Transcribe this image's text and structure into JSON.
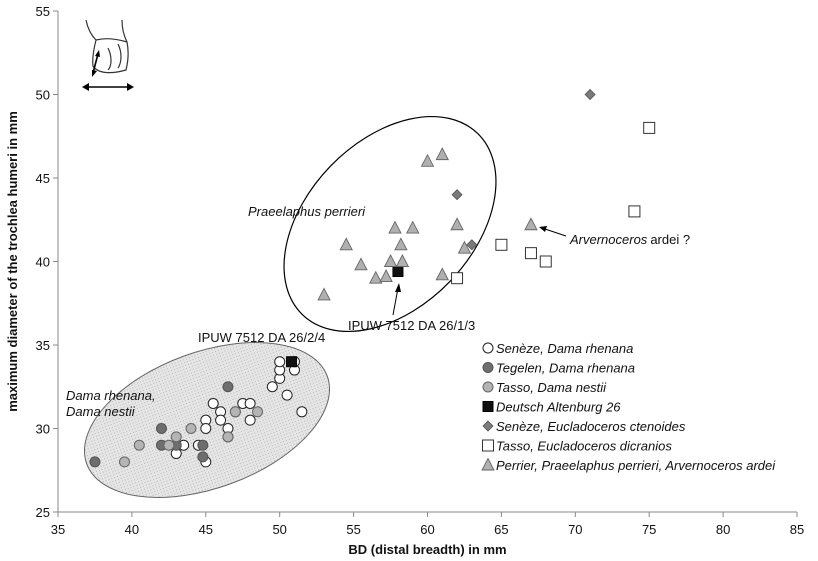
{
  "chart_data": {
    "type": "scatter",
    "xlabel": "BD (distal breadth) in mm",
    "ylabel": "maximum diameter of the trochlea humeri in mm",
    "xlim": [
      35,
      85
    ],
    "ylim": [
      25,
      55
    ],
    "x_ticks": [
      "35",
      "40",
      "45",
      "50",
      "55",
      "60",
      "65",
      "70",
      "75",
      "80",
      "85"
    ],
    "y_ticks": [
      "25",
      "30",
      "35",
      "40",
      "45",
      "50",
      "55"
    ],
    "grid": false,
    "legend_position": "bottom-right",
    "series": [
      {
        "name": "Senèze, Dama rhenana",
        "marker": "open-circle",
        "color": "#ffffff",
        "points": [
          [
            43,
            28.5
          ],
          [
            43.5,
            29
          ],
          [
            44.5,
            29
          ],
          [
            45,
            28
          ],
          [
            45,
            30.5
          ],
          [
            45,
            30
          ],
          [
            45.5,
            31.5
          ],
          [
            46,
            31
          ],
          [
            46,
            30.5
          ],
          [
            46.5,
            30
          ],
          [
            46.5,
            29.5
          ],
          [
            47.5,
            31.5
          ],
          [
            48,
            31.5
          ],
          [
            48,
            30.5
          ],
          [
            49.5,
            32.5
          ],
          [
            50,
            33
          ],
          [
            50,
            33.5
          ],
          [
            50,
            34
          ],
          [
            50.5,
            32
          ],
          [
            51,
            33.5
          ],
          [
            51,
            34
          ],
          [
            51.5,
            31
          ]
        ]
      },
      {
        "name": "Tegelen, Dama rhenana",
        "marker": "dark-circle",
        "color": "#6e6e6e",
        "points": [
          [
            37.5,
            28
          ],
          [
            42,
            30
          ],
          [
            42,
            29
          ],
          [
            43,
            29
          ],
          [
            44.8,
            28.3
          ],
          [
            44.8,
            29
          ],
          [
            46.5,
            32.5
          ],
          [
            47,
            31
          ]
        ]
      },
      {
        "name": "Tasso, Dama nestii",
        "marker": "light-circle",
        "color": "#b4b4b4",
        "points": [
          [
            39.5,
            28
          ],
          [
            40.5,
            29
          ],
          [
            42.5,
            29
          ],
          [
            43,
            29.5
          ],
          [
            44,
            30
          ],
          [
            46.5,
            29.5
          ],
          [
            47,
            31
          ],
          [
            48.5,
            31
          ]
        ]
      },
      {
        "name": "Deutsch Altenburg 26",
        "marker": "black-square",
        "color": "#111111",
        "points": [
          [
            50.8,
            34
          ],
          [
            58,
            39.4
          ]
        ]
      },
      {
        "name": "Senèze, Eucladoceros ctenoides",
        "marker": "diamond",
        "color": "#7a7a7a",
        "points": [
          [
            71,
            50
          ],
          [
            62,
            44
          ],
          [
            63,
            41
          ]
        ]
      },
      {
        "name": "Tasso, Eucladoceros dicranios",
        "marker": "open-square",
        "color": "#ffffff",
        "points": [
          [
            75,
            48
          ],
          [
            74,
            43
          ],
          [
            65,
            41
          ],
          [
            67,
            40.5
          ],
          [
            68,
            40
          ],
          [
            62,
            39
          ]
        ]
      },
      {
        "name": "Perrier, Praeelaphus perrieri, Arvernoceros ardei",
        "marker": "triangle",
        "color": "#b0b0b0",
        "points": [
          [
            53,
            38
          ],
          [
            54.5,
            41
          ],
          [
            55.5,
            39.8
          ],
          [
            56.5,
            39
          ],
          [
            57.2,
            39.1
          ],
          [
            57.5,
            40
          ],
          [
            57.8,
            42
          ],
          [
            58.2,
            41
          ],
          [
            58.3,
            40
          ],
          [
            59,
            42
          ],
          [
            60,
            46
          ],
          [
            61,
            46.4
          ],
          [
            61,
            39.2
          ],
          [
            62,
            42.2
          ],
          [
            62.5,
            40.8
          ],
          [
            67,
            42.2
          ]
        ]
      }
    ],
    "annotations": {
      "praeelaphus": "Praeelaphus perrieri",
      "arvernoceros_name": "Arvernoceros",
      "arvernoceros_rest": "ardei ?",
      "ipuw_upper": "IPUW 7512 DA 26/1/3",
      "ipuw_lower": "IPUW 7512 DA 26/2/4",
      "dama_line1": "Dama rhenana,",
      "dama_line2": "Dama nestii"
    }
  }
}
